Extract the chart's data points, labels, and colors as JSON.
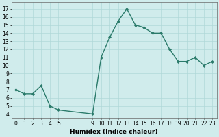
{
  "x": [
    0,
    1,
    2,
    3,
    4,
    5,
    9,
    10,
    11,
    12,
    13,
    14,
    15,
    16,
    17,
    18,
    19,
    20,
    21,
    22,
    23
  ],
  "y": [
    7.0,
    6.5,
    6.5,
    7.5,
    5.0,
    4.5,
    4.0,
    11.0,
    13.5,
    15.5,
    17.0,
    15.0,
    14.7,
    14.0,
    14.0,
    12.0,
    10.5,
    10.5,
    11.0,
    10.0,
    10.5
  ],
  "line_color": "#2a7a6a",
  "marker": "D",
  "marker_size": 2.0,
  "bg_color": "#d0ecec",
  "grid_color": "#b0d8d8",
  "xlabel": "Humidex (Indice chaleur)",
  "xlim": [
    -0.5,
    23.5
  ],
  "ylim": [
    3.5,
    17.8
  ],
  "xticks": [
    0,
    1,
    2,
    3,
    4,
    5,
    9,
    10,
    11,
    12,
    13,
    14,
    15,
    16,
    17,
    18,
    19,
    20,
    21,
    22,
    23
  ],
  "yticks": [
    4,
    5,
    6,
    7,
    8,
    9,
    10,
    11,
    12,
    13,
    14,
    15,
    16,
    17
  ],
  "xlabel_fontsize": 6.5,
  "tick_fontsize": 5.5,
  "linewidth": 1.0
}
